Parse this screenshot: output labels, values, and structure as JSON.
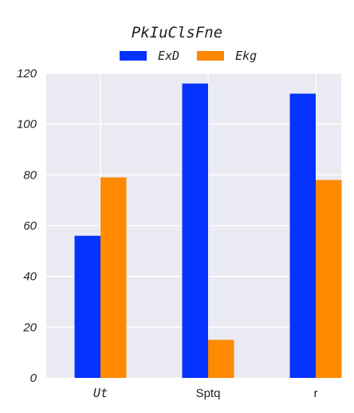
{
  "chart_data": {
    "type": "bar",
    "title": "PkIuClsFne",
    "categories": [
      "Ut",
      "Sptq",
      "r"
    ],
    "series": [
      {
        "name": "ExD",
        "values": [
          56,
          116,
          112
        ],
        "color": "#0433ff"
      },
      {
        "name": "Ekg",
        "values": [
          79,
          15,
          78
        ],
        "color": "#ff8a00"
      }
    ],
    "ylim": [
      0,
      120
    ],
    "yticks": [
      0,
      20,
      40,
      60,
      80,
      100,
      120
    ],
    "grid": true,
    "legend_position": "top"
  }
}
